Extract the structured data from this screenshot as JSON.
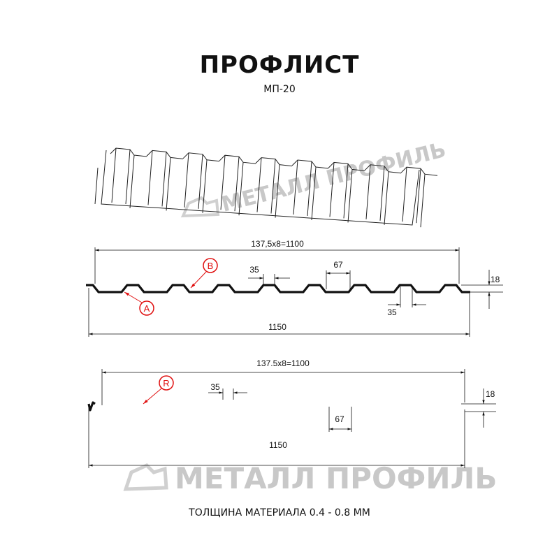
{
  "title": "ПРОФЛИСТ",
  "subtitle": "МП-20",
  "footer": "ТОЛЩИНА МАТЕРИАЛА 0.4 - 0.8 ММ",
  "watermark": "МЕТАЛЛ ПРОФИЛЬ",
  "colors": {
    "profile": "#111111",
    "annotation": "#e01010",
    "watermark": "#c8c8c8"
  },
  "profile1": {
    "pitch_dim": "137,5x8=1100",
    "total_dim": "1150",
    "top_width": "35",
    "top_width_lower": "35",
    "bottom_width": "67",
    "height": "18",
    "label_a": "A",
    "label_b": "B"
  },
  "profile2": {
    "pitch_dim": "137.5x8=1100",
    "total_dim": "1150",
    "top_width": "35",
    "bottom_width": "67",
    "height": "18",
    "label_r": "R"
  }
}
